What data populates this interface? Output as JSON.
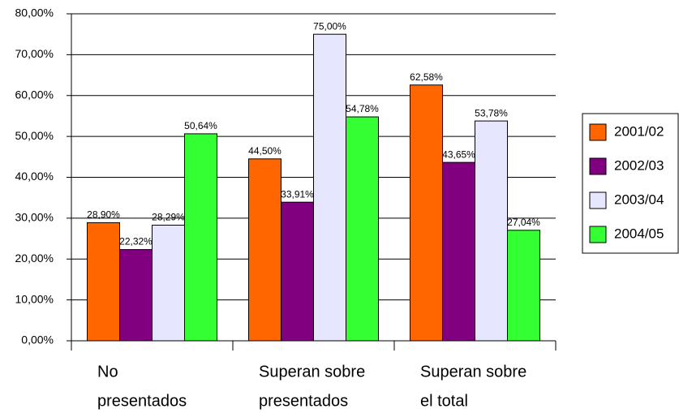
{
  "chart_data": {
    "type": "bar",
    "categories": [
      [
        "No",
        "presentados"
      ],
      [
        "Superan sobre",
        "presentados"
      ],
      [
        "Superan sobre",
        "el total"
      ]
    ],
    "series": [
      {
        "name": "2001/02",
        "color": "#ff6600",
        "values": [
          28.9,
          44.5,
          62.58
        ],
        "value_labels": [
          "28,90%",
          "44,50%",
          "62,58%"
        ]
      },
      {
        "name": "2002/03",
        "color": "#800080",
        "values": [
          22.32,
          33.91,
          43.65
        ],
        "value_labels": [
          "22,32%",
          "33,91%",
          "43,65%"
        ]
      },
      {
        "name": "2003/04",
        "color": "#e6e6ff",
        "values": [
          28.29,
          75,
          53.78
        ],
        "value_labels": [
          "28,29%",
          "75,00%",
          "53,78%"
        ]
      },
      {
        "name": "2004/05",
        "color": "#33ff33",
        "values": [
          50.64,
          54.78,
          27.04
        ],
        "value_labels": [
          "50,64%",
          "54,78%",
          "27,04%"
        ]
      }
    ],
    "ylim": [
      0,
      80
    ],
    "yticks": [
      {
        "value": 0,
        "label": "0,00%"
      },
      {
        "value": 10,
        "label": "10,00%"
      },
      {
        "value": 20,
        "label": "20,00%"
      },
      {
        "value": 30,
        "label": "30,00%"
      },
      {
        "value": 40,
        "label": "40,00%"
      },
      {
        "value": 50,
        "label": "50,00%"
      },
      {
        "value": 60,
        "label": "60,00%"
      },
      {
        "value": 70,
        "label": "70,00%"
      },
      {
        "value": 80,
        "label": "80,00%"
      }
    ],
    "grid": true,
    "legend": "right"
  }
}
